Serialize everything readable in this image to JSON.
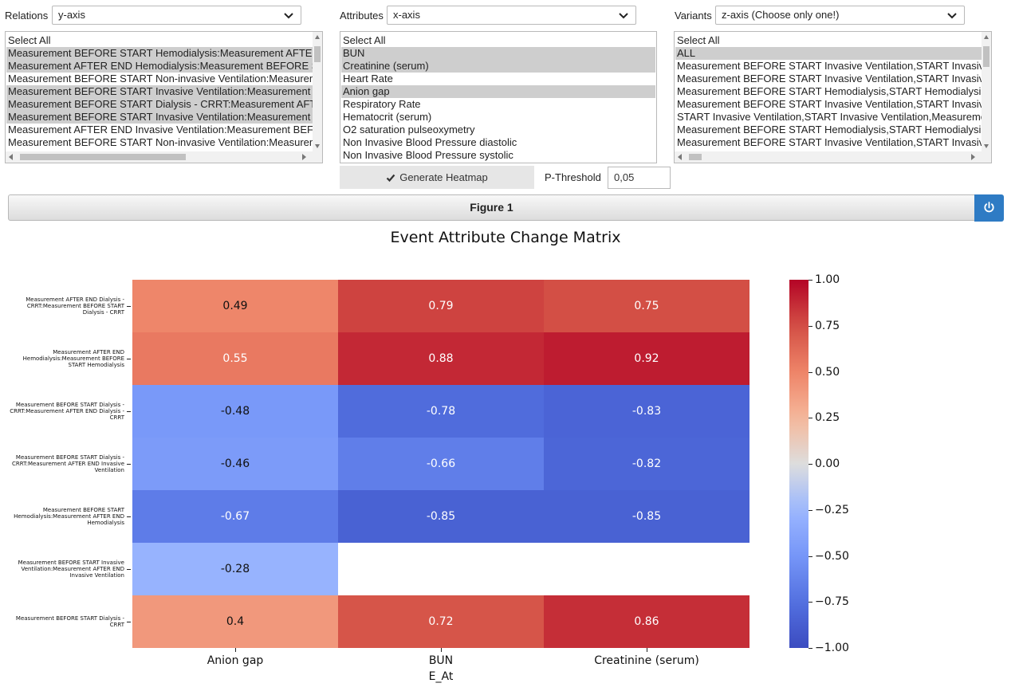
{
  "controls": {
    "relations": {
      "label": "Relations",
      "select_value": "y-axis",
      "options": [
        {
          "text": "Select All",
          "selected": false
        },
        {
          "text": "Measurement BEFORE START Hemodialysis:Measurement AFTER END Hemodialysis",
          "selected": true
        },
        {
          "text": "Measurement AFTER END Hemodialysis:Measurement BEFORE START Hemodialysis",
          "selected": true
        },
        {
          "text": "Measurement BEFORE START Non-invasive Ventilation:Measurement AFTER END",
          "selected": false
        },
        {
          "text": "Measurement BEFORE START Invasive Ventilation:Measurement AFTER END",
          "selected": true
        },
        {
          "text": "Measurement BEFORE START Dialysis - CRRT:Measurement AFTER END",
          "selected": true
        },
        {
          "text": "Measurement BEFORE START Invasive Ventilation:Measurement AFTER END",
          "selected": true
        },
        {
          "text": "Measurement AFTER END Invasive Ventilation:Measurement BEFORE START",
          "selected": false
        },
        {
          "text": "Measurement BEFORE START Non-invasive Ventilation:Measurement AFTER",
          "selected": false
        }
      ]
    },
    "attributes": {
      "label": "Attributes",
      "select_value": "x-axis",
      "options": [
        {
          "text": "Select All",
          "selected": false
        },
        {
          "text": "BUN",
          "selected": true
        },
        {
          "text": "Creatinine (serum)",
          "selected": true
        },
        {
          "text": "Heart Rate",
          "selected": false
        },
        {
          "text": "Anion gap",
          "selected": true
        },
        {
          "text": "Respiratory Rate",
          "selected": false
        },
        {
          "text": "Hematocrit (serum)",
          "selected": false
        },
        {
          "text": "O2 saturation pulseoxymetry",
          "selected": false
        },
        {
          "text": "Non Invasive Blood Pressure diastolic",
          "selected": false
        },
        {
          "text": "Non Invasive Blood Pressure systolic",
          "selected": false
        }
      ]
    },
    "variants": {
      "label": "Variants",
      "select_value": "z-axis (Choose only one!)",
      "options": [
        {
          "text": "Select All",
          "selected": false
        },
        {
          "text": "ALL",
          "selected": true
        },
        {
          "text": "Measurement BEFORE START Invasive Ventilation,START Invasive Ventilation",
          "selected": false
        },
        {
          "text": "Measurement BEFORE START Invasive Ventilation,START Invasive Ventilation",
          "selected": false
        },
        {
          "text": "Measurement BEFORE START Hemodialysis,START Hemodialysis",
          "selected": false
        },
        {
          "text": "Measurement BEFORE START Invasive Ventilation,START Invasive Ventilation",
          "selected": false
        },
        {
          "text": "START Invasive Ventilation,START Invasive Ventilation,Measurement",
          "selected": false
        },
        {
          "text": "Measurement BEFORE START Hemodialysis,START Hemodialysis",
          "selected": false
        },
        {
          "text": "Measurement BEFORE START Invasive Ventilation,START Invasive Ventilation",
          "selected": false
        }
      ]
    },
    "generate_label": "Generate Heatmap",
    "p_threshold_label": "P-Threshold",
    "p_threshold_value": "0,05"
  },
  "figure": {
    "bar_label": "Figure 1",
    "power_icon": "power-icon"
  },
  "chart_data": {
    "type": "heatmap",
    "title": "Event Attribute Change Matrix",
    "xlabel": "E_At",
    "ylabel": "",
    "columns": [
      "Anion gap",
      "BUN",
      "Creatinine (serum)"
    ],
    "rows": [
      "Measurement AFTER END Dialysis - CRRT:Measurement BEFORE START Dialysis - CRRT",
      "Measurement AFTER END Hemodialysis:Measurement BEFORE START Hemodialysis",
      "Measurement BEFORE START Dialysis - CRRT:Measurement AFTER END Dialysis - CRRT",
      "Measurement BEFORE START Dialysis - CRRT:Measurement AFTER END Invasive Ventilation",
      "Measurement BEFORE START Hemodialysis:Measurement AFTER END Hemodialysis",
      "Measurement BEFORE START Invasive Ventilation:Measurement AFTER END Invasive Ventilation",
      "Measurement BEFORE START Dialysis - CRRT"
    ],
    "values": [
      [
        0.49,
        0.79,
        0.75
      ],
      [
        0.55,
        0.88,
        0.92
      ],
      [
        -0.48,
        -0.78,
        -0.83
      ],
      [
        -0.46,
        -0.66,
        -0.82
      ],
      [
        -0.67,
        -0.85,
        -0.85
      ],
      [
        -0.28,
        null,
        null
      ],
      [
        0.4,
        0.72,
        0.86
      ]
    ],
    "colorbar": {
      "colormap": "coolwarm",
      "range": [
        -1.0,
        1.0
      ],
      "ticks": [
        "1.00",
        "0.75",
        "0.50",
        "0.25",
        "0.00",
        "−0.25",
        "−0.50",
        "−0.75",
        "−1.00"
      ]
    }
  }
}
